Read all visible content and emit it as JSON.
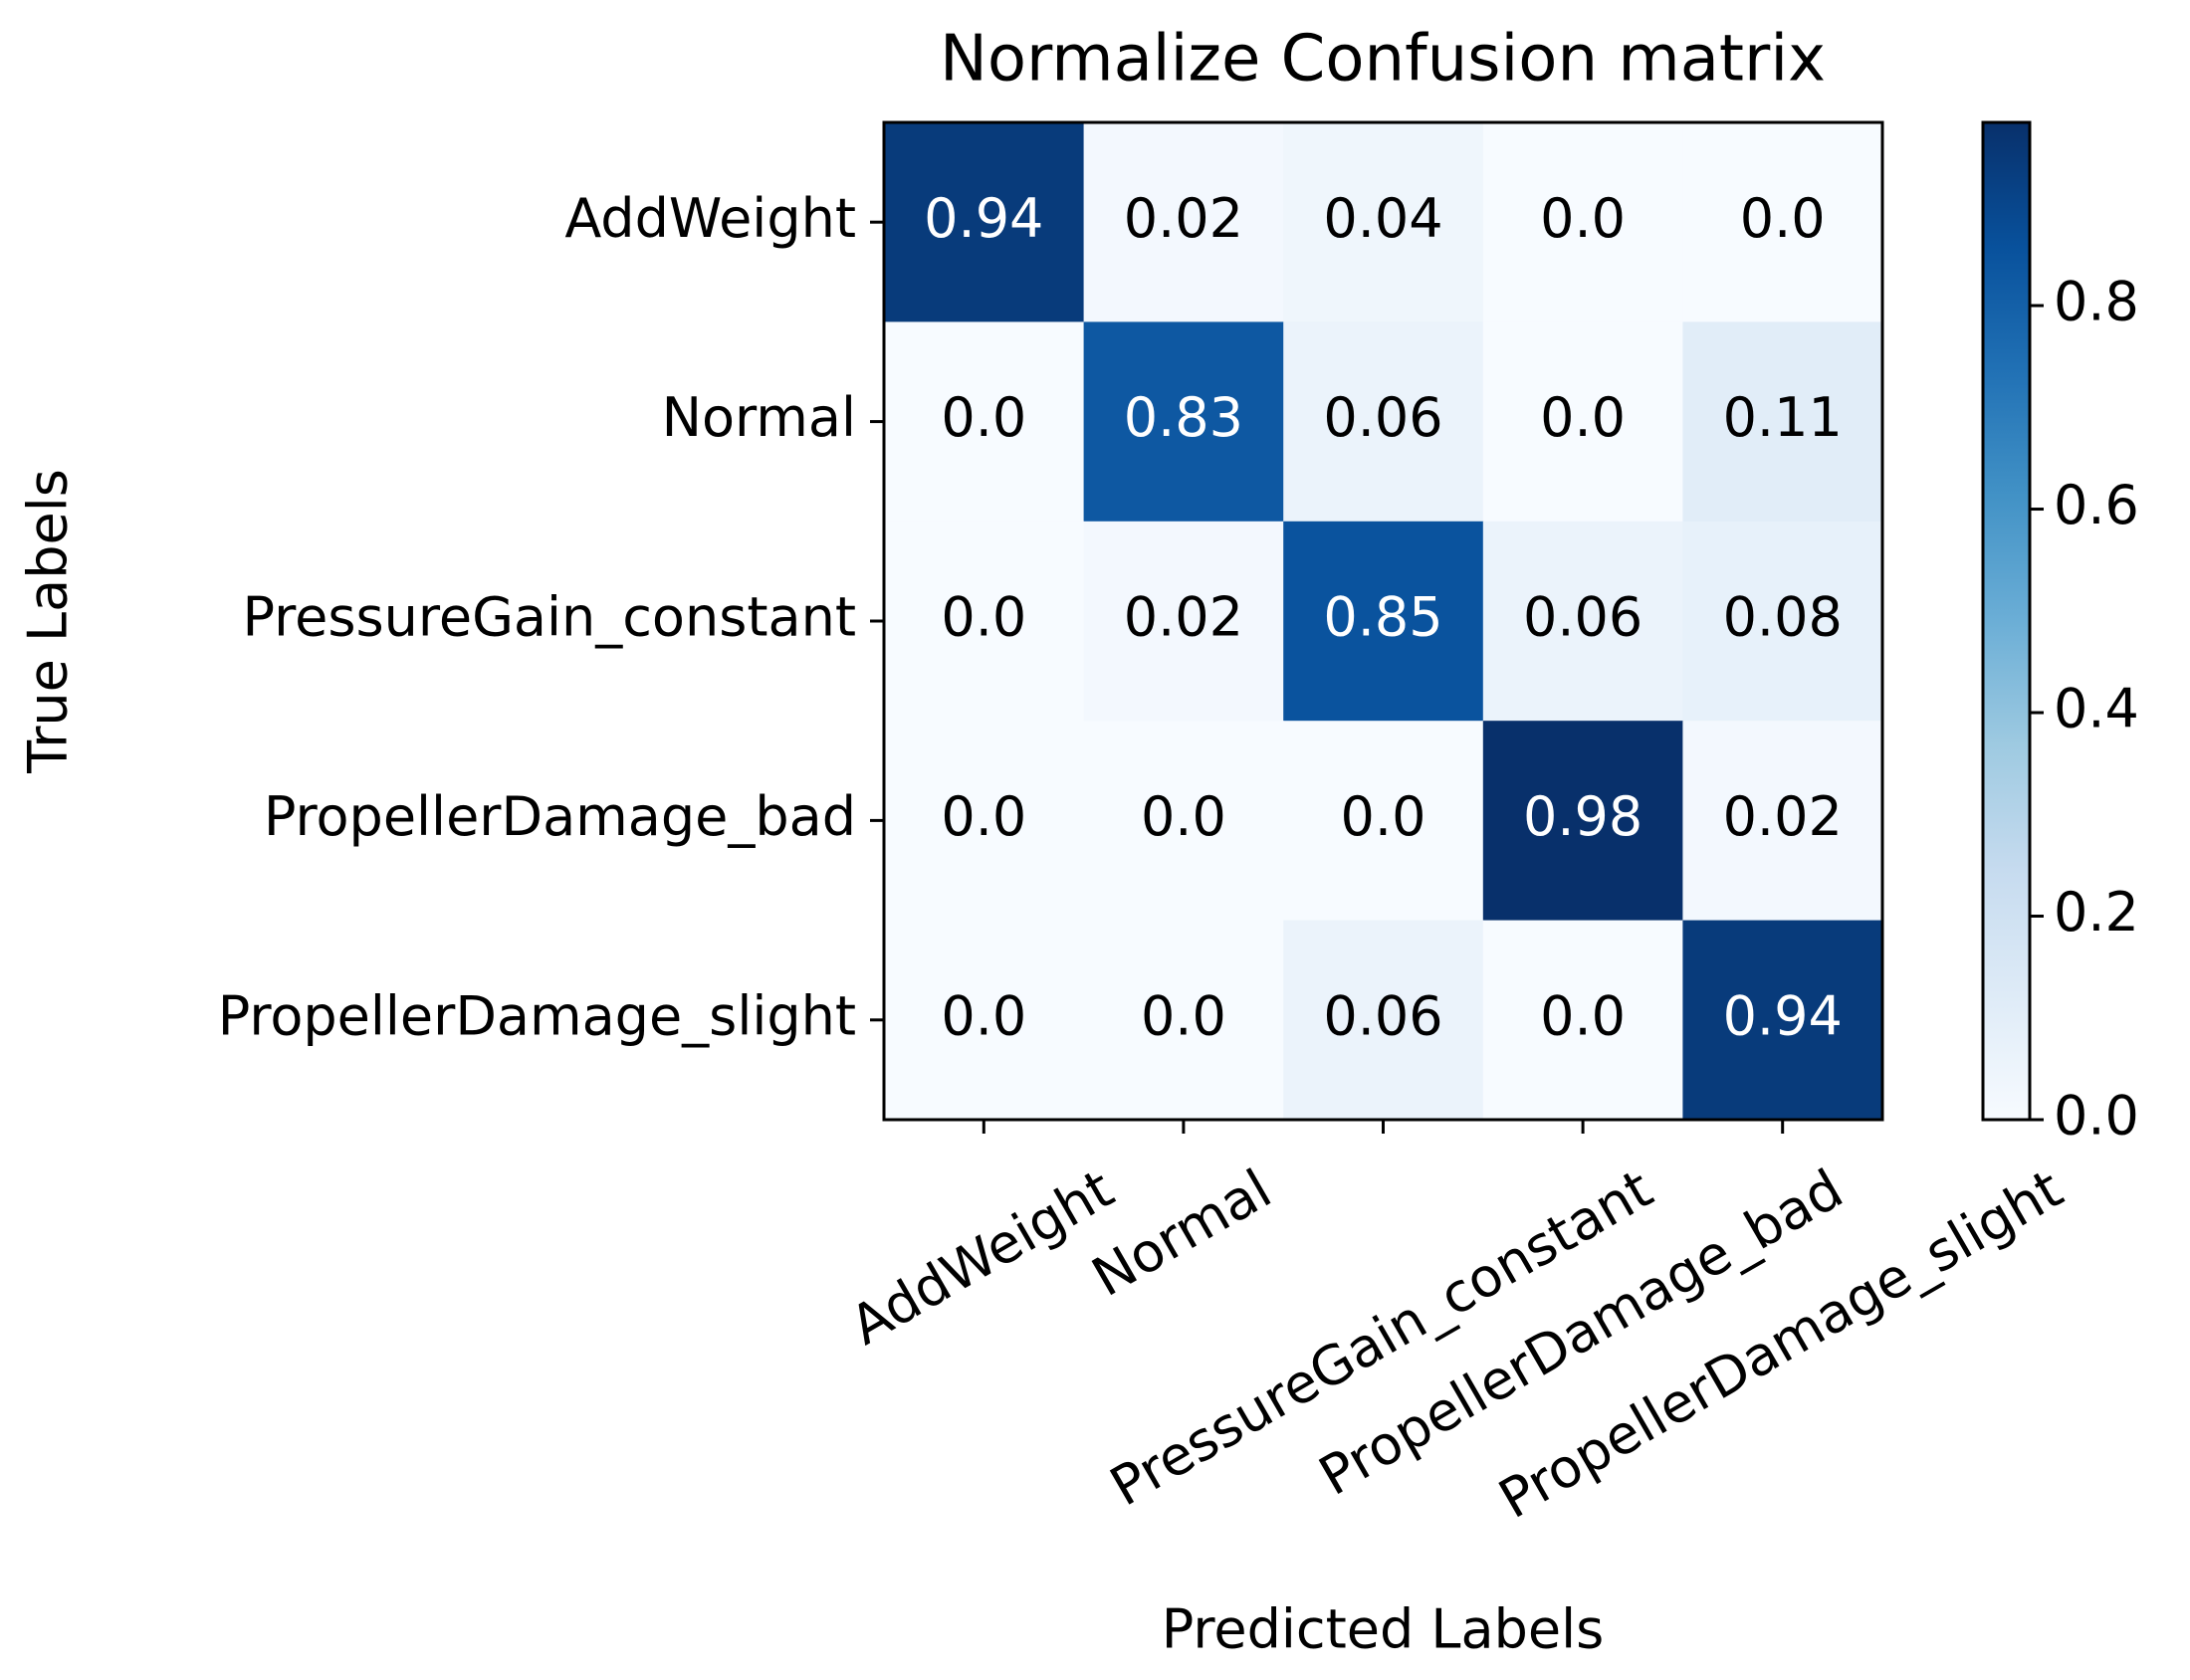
{
  "chart_data": {
    "type": "heatmap",
    "title": "Normalize Confusion matrix",
    "x_label": "Predicted Labels",
    "y_label": "True Labels",
    "x_categories": [
      "AddWeight",
      "Normal",
      "PressureGain_constant",
      "PropellerDamage_bad",
      "PropellerDamage_slight"
    ],
    "y_categories": [
      "AddWeight",
      "Normal",
      "PressureGain_constant",
      "PropellerDamage_bad",
      "PropellerDamage_slight"
    ],
    "values": [
      [
        0.94,
        0.02,
        0.04,
        0,
        0
      ],
      [
        0,
        0.83,
        0.06,
        0,
        0.11
      ],
      [
        0,
        0.02,
        0.85,
        0.06,
        0.08
      ],
      [
        0,
        0,
        0,
        0.98,
        0.02
      ],
      [
        0,
        0,
        0.06,
        0,
        0.94
      ]
    ],
    "value_labels": [
      [
        "0.94",
        "0.02",
        "0.04",
        "0.0",
        "0.0"
      ],
      [
        "0.0",
        "0.83",
        "0.06",
        "0.0",
        "0.11"
      ],
      [
        "0.0",
        "0.02",
        "0.85",
        "0.06",
        "0.08"
      ],
      [
        "0.0",
        "0.0",
        "0.0",
        "0.98",
        "0.02"
      ],
      [
        "0.0",
        "0.0",
        "0.06",
        "0.0",
        "0.94"
      ]
    ],
    "colormap": "Blues",
    "zlim": [
      0,
      0.98
    ],
    "zticks": [
      {
        "value": 0,
        "label": "0.0"
      },
      0.2,
      0.4,
      0.6,
      0.8
    ]
  }
}
